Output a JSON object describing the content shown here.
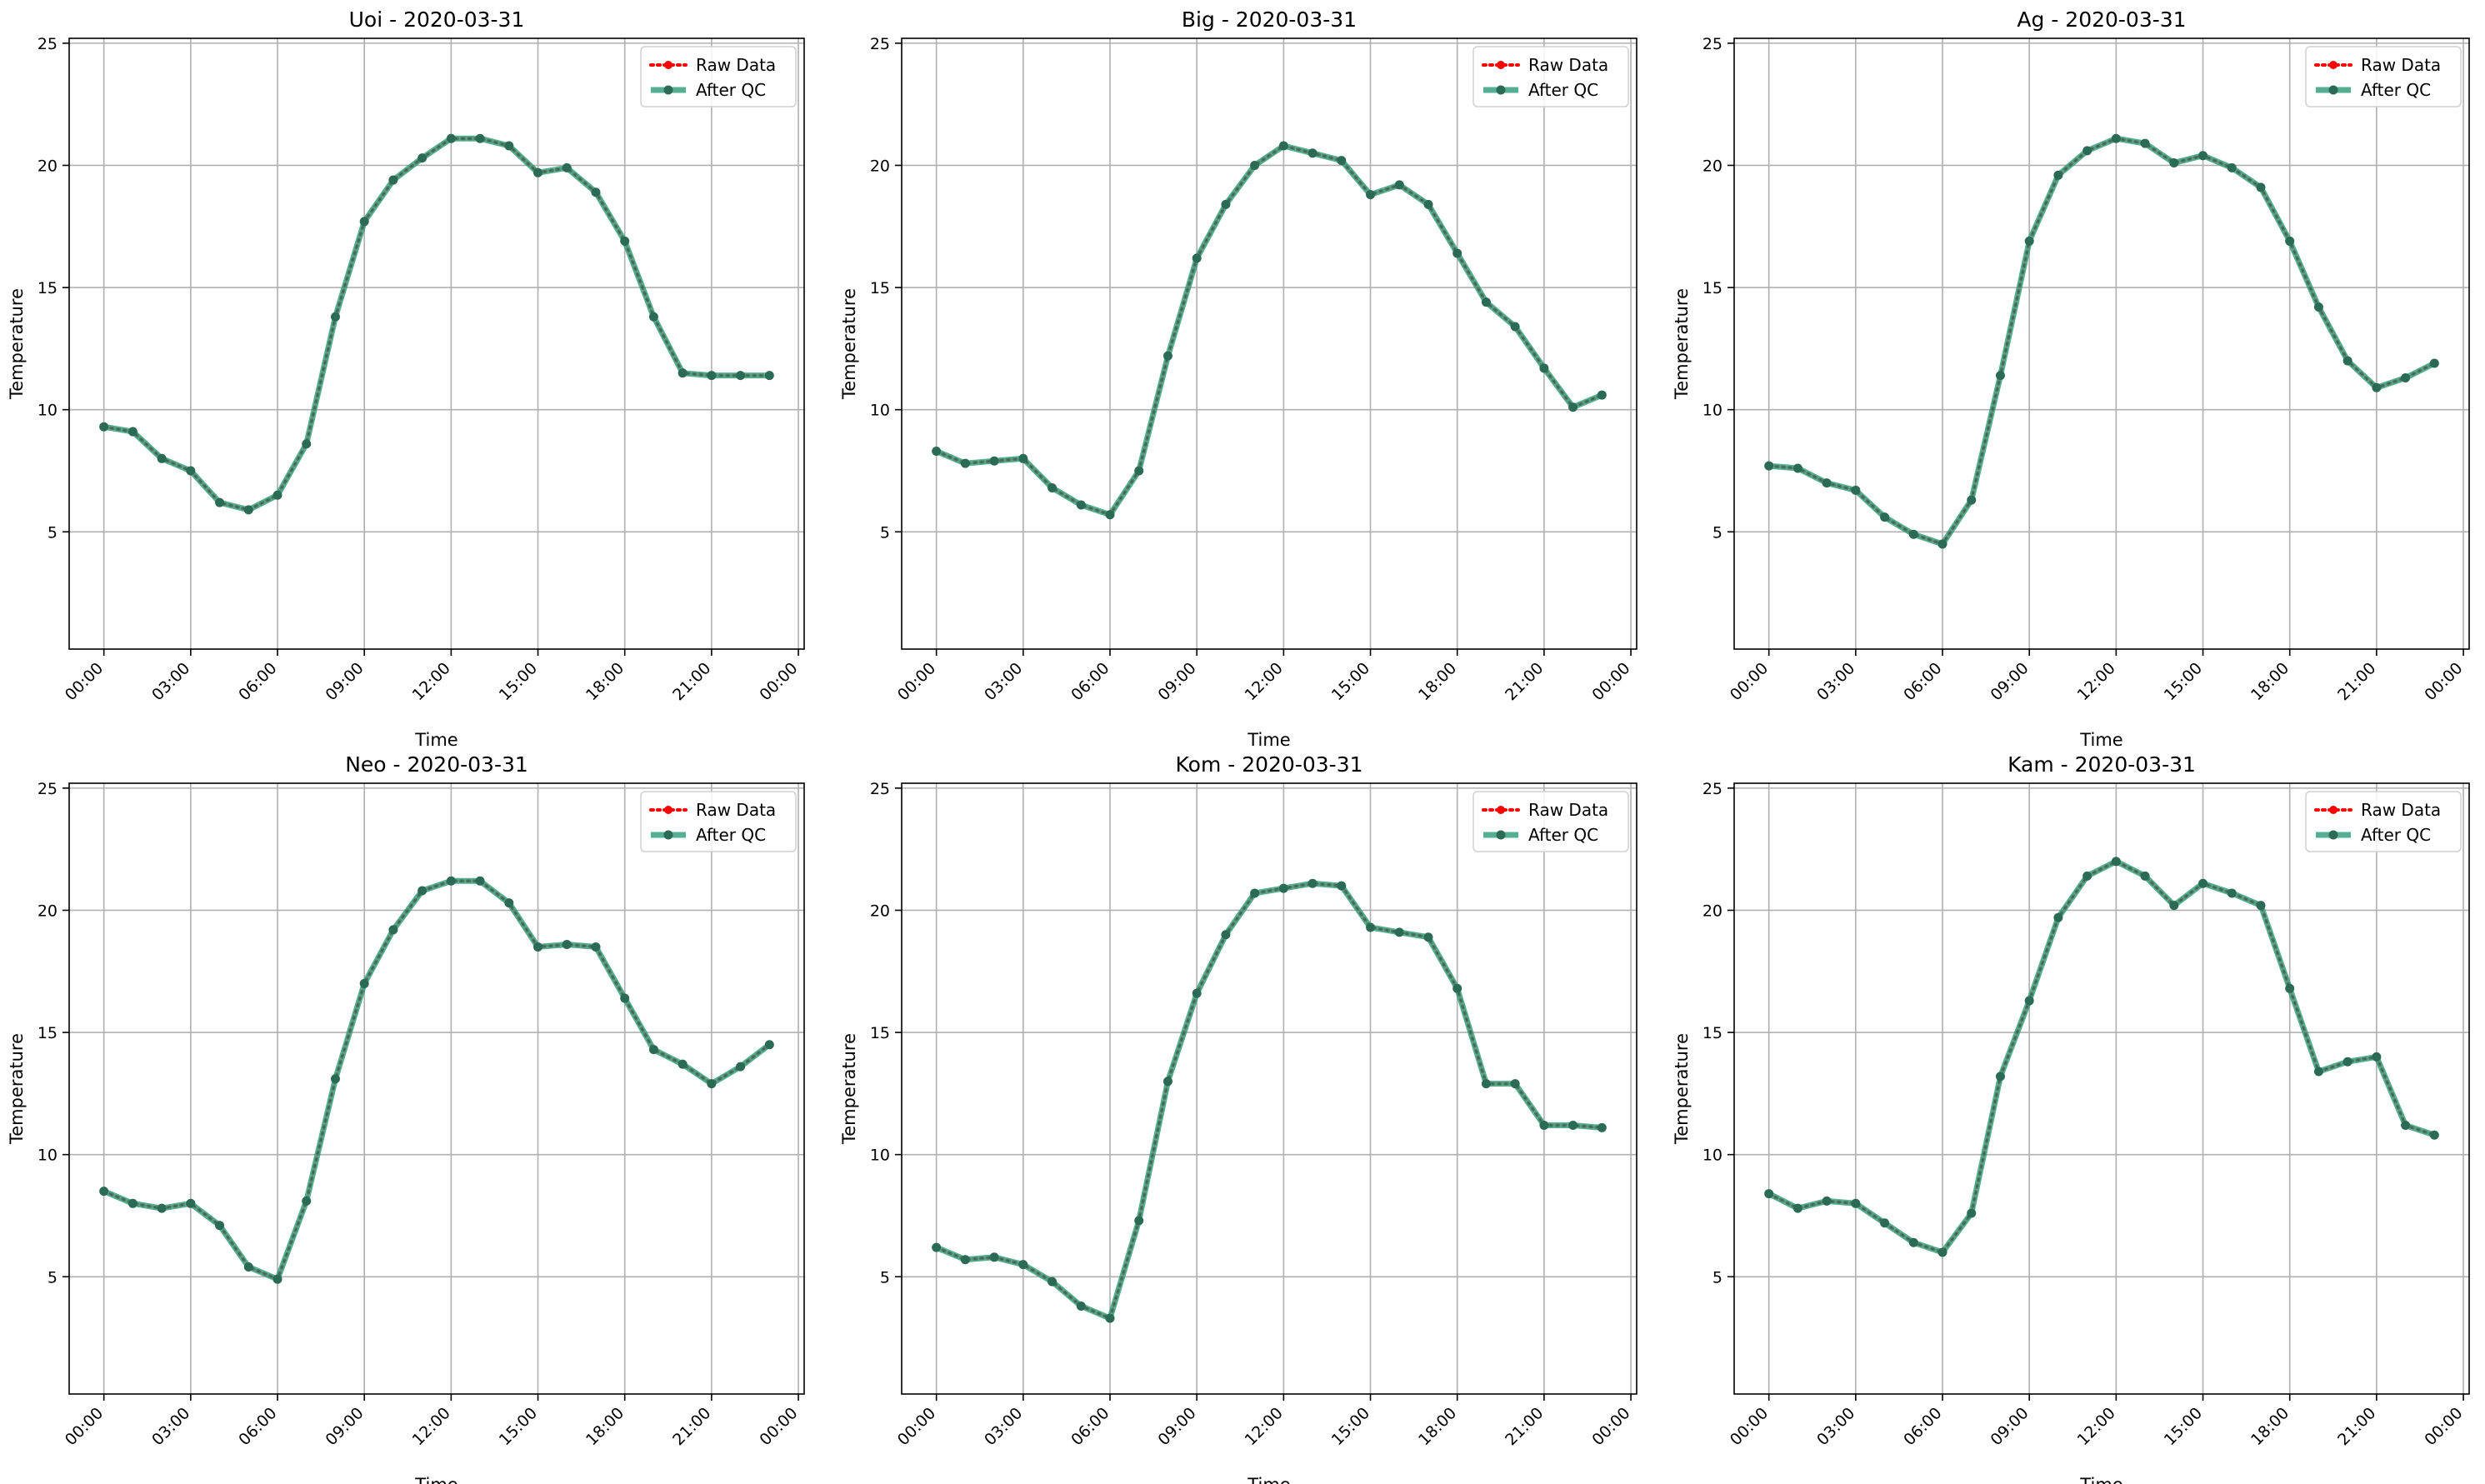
{
  "chart_data": [
    {
      "type": "line",
      "title": "Uoi - 2020-03-31",
      "xlabel": "Time",
      "ylabel": "Temperature",
      "ylim": [
        0.2,
        25.2
      ],
      "xlim": [
        "00:00",
        "24:00"
      ],
      "yticks": [
        5,
        10,
        15,
        20,
        25
      ],
      "xticks": [
        "00:00",
        "03:00",
        "06:00",
        "09:00",
        "12:00",
        "15:00",
        "18:00",
        "21:00",
        "00:00"
      ],
      "grid": true,
      "legend_position": "top-right",
      "x": [
        "00:00",
        "01:00",
        "02:00",
        "03:00",
        "04:00",
        "05:00",
        "06:00",
        "07:00",
        "08:00",
        "09:00",
        "10:00",
        "11:00",
        "12:00",
        "13:00",
        "14:00",
        "15:00",
        "16:00",
        "17:00",
        "18:00",
        "19:00",
        "20:00",
        "21:00",
        "22:00",
        "23:00"
      ],
      "series": [
        {
          "name": "Raw Data",
          "color": "#ff0000",
          "values": [
            9.3,
            9.1,
            8.0,
            7.5,
            6.2,
            5.9,
            6.5,
            8.6,
            13.8,
            17.7,
            19.4,
            20.3,
            21.1,
            21.1,
            20.8,
            19.7,
            19.9,
            18.9,
            16.9,
            13.8,
            11.5,
            11.4,
            11.4,
            11.4
          ]
        },
        {
          "name": "After QC",
          "color": "#2f9e7b",
          "values": [
            9.3,
            9.1,
            8.0,
            7.5,
            6.2,
            5.9,
            6.5,
            8.6,
            13.8,
            17.7,
            19.4,
            20.3,
            21.1,
            21.1,
            20.8,
            19.7,
            19.9,
            18.9,
            16.9,
            13.8,
            11.5,
            11.4,
            11.4,
            11.4
          ]
        }
      ]
    },
    {
      "type": "line",
      "title": "Big - 2020-03-31",
      "xlabel": "Time",
      "ylabel": "Temperature",
      "ylim": [
        0.2,
        25.2
      ],
      "xlim": [
        "00:00",
        "24:00"
      ],
      "yticks": [
        5,
        10,
        15,
        20,
        25
      ],
      "xticks": [
        "00:00",
        "03:00",
        "06:00",
        "09:00",
        "12:00",
        "15:00",
        "18:00",
        "21:00",
        "00:00"
      ],
      "grid": true,
      "legend_position": "top-right",
      "x": [
        "00:00",
        "01:00",
        "02:00",
        "03:00",
        "04:00",
        "05:00",
        "06:00",
        "07:00",
        "08:00",
        "09:00",
        "10:00",
        "11:00",
        "12:00",
        "13:00",
        "14:00",
        "15:00",
        "16:00",
        "17:00",
        "18:00",
        "19:00",
        "20:00",
        "21:00",
        "22:00",
        "23:00"
      ],
      "series": [
        {
          "name": "Raw Data",
          "color": "#ff0000",
          "values": [
            8.3,
            7.8,
            7.9,
            8.0,
            6.8,
            6.1,
            5.7,
            7.5,
            12.2,
            16.2,
            18.4,
            20.0,
            20.8,
            20.5,
            20.2,
            18.8,
            19.2,
            18.4,
            16.4,
            14.4,
            13.4,
            11.7,
            10.1,
            10.6
          ]
        },
        {
          "name": "After QC",
          "color": "#2f9e7b",
          "values": [
            8.3,
            7.8,
            7.9,
            8.0,
            6.8,
            6.1,
            5.7,
            7.5,
            12.2,
            16.2,
            18.4,
            20.0,
            20.8,
            20.5,
            20.2,
            18.8,
            19.2,
            18.4,
            16.4,
            14.4,
            13.4,
            11.7,
            10.1,
            10.6
          ]
        }
      ]
    },
    {
      "type": "line",
      "title": "Ag - 2020-03-31",
      "xlabel": "Time",
      "ylabel": "Temperature",
      "ylim": [
        0.2,
        25.2
      ],
      "xlim": [
        "00:00",
        "24:00"
      ],
      "yticks": [
        5,
        10,
        15,
        20,
        25
      ],
      "xticks": [
        "00:00",
        "03:00",
        "06:00",
        "09:00",
        "12:00",
        "15:00",
        "18:00",
        "21:00",
        "00:00"
      ],
      "grid": true,
      "legend_position": "top-right",
      "x": [
        "00:00",
        "01:00",
        "02:00",
        "03:00",
        "04:00",
        "05:00",
        "06:00",
        "07:00",
        "08:00",
        "09:00",
        "10:00",
        "11:00",
        "12:00",
        "13:00",
        "14:00",
        "15:00",
        "16:00",
        "17:00",
        "18:00",
        "19:00",
        "20:00",
        "21:00",
        "22:00",
        "23:00"
      ],
      "series": [
        {
          "name": "Raw Data",
          "color": "#ff0000",
          "values": [
            7.7,
            7.6,
            7.0,
            6.7,
            5.6,
            4.9,
            4.5,
            6.3,
            11.4,
            16.9,
            19.6,
            20.6,
            21.1,
            20.9,
            20.1,
            20.4,
            19.9,
            19.1,
            16.9,
            14.2,
            12.0,
            10.9,
            11.3,
            11.9
          ]
        },
        {
          "name": "After QC",
          "color": "#2f9e7b",
          "values": [
            7.7,
            7.6,
            7.0,
            6.7,
            5.6,
            4.9,
            4.5,
            6.3,
            11.4,
            16.9,
            19.6,
            20.6,
            21.1,
            20.9,
            20.1,
            20.4,
            19.9,
            19.1,
            16.9,
            14.2,
            12.0,
            10.9,
            11.3,
            11.9
          ]
        }
      ]
    },
    {
      "type": "line",
      "title": "Neo - 2020-03-31",
      "xlabel": "Time",
      "ylabel": "Temperature",
      "ylim": [
        0.2,
        25.2
      ],
      "xlim": [
        "00:00",
        "24:00"
      ],
      "yticks": [
        5,
        10,
        15,
        20,
        25
      ],
      "xticks": [
        "00:00",
        "03:00",
        "06:00",
        "09:00",
        "12:00",
        "15:00",
        "18:00",
        "21:00",
        "00:00"
      ],
      "grid": true,
      "legend_position": "top-right",
      "x": [
        "00:00",
        "01:00",
        "02:00",
        "03:00",
        "04:00",
        "05:00",
        "06:00",
        "07:00",
        "08:00",
        "09:00",
        "10:00",
        "11:00",
        "12:00",
        "13:00",
        "14:00",
        "15:00",
        "16:00",
        "17:00",
        "18:00",
        "19:00",
        "20:00",
        "21:00",
        "22:00",
        "23:00"
      ],
      "series": [
        {
          "name": "Raw Data",
          "color": "#ff0000",
          "values": [
            8.5,
            8.0,
            7.8,
            8.0,
            7.1,
            5.4,
            4.9,
            8.1,
            13.1,
            17.0,
            19.2,
            20.8,
            21.2,
            21.2,
            20.3,
            18.5,
            18.6,
            18.5,
            16.4,
            14.3,
            13.7,
            12.9,
            13.6,
            14.5
          ]
        },
        {
          "name": "After QC",
          "color": "#2f9e7b",
          "values": [
            8.5,
            8.0,
            7.8,
            8.0,
            7.1,
            5.4,
            4.9,
            8.1,
            13.1,
            17.0,
            19.2,
            20.8,
            21.2,
            21.2,
            20.3,
            18.5,
            18.6,
            18.5,
            16.4,
            14.3,
            13.7,
            12.9,
            13.6,
            14.5
          ]
        }
      ]
    },
    {
      "type": "line",
      "title": "Kom - 2020-03-31",
      "xlabel": "Time",
      "ylabel": "Temperature",
      "ylim": [
        0.2,
        25.2
      ],
      "xlim": [
        "00:00",
        "24:00"
      ],
      "yticks": [
        5,
        10,
        15,
        20,
        25
      ],
      "xticks": [
        "00:00",
        "03:00",
        "06:00",
        "09:00",
        "12:00",
        "15:00",
        "18:00",
        "21:00",
        "00:00"
      ],
      "grid": true,
      "legend_position": "top-right",
      "x": [
        "00:00",
        "01:00",
        "02:00",
        "03:00",
        "04:00",
        "05:00",
        "06:00",
        "07:00",
        "08:00",
        "09:00",
        "10:00",
        "11:00",
        "12:00",
        "13:00",
        "14:00",
        "15:00",
        "16:00",
        "17:00",
        "18:00",
        "19:00",
        "20:00",
        "21:00",
        "22:00",
        "23:00"
      ],
      "series": [
        {
          "name": "Raw Data",
          "color": "#ff0000",
          "values": [
            6.2,
            5.7,
            5.8,
            5.5,
            4.8,
            3.8,
            3.3,
            7.3,
            13.0,
            16.6,
            19.0,
            20.7,
            20.9,
            21.1,
            21.0,
            19.3,
            19.1,
            18.9,
            16.8,
            12.9,
            12.9,
            11.2,
            11.2,
            11.1
          ]
        },
        {
          "name": "After QC",
          "color": "#2f9e7b",
          "values": [
            6.2,
            5.7,
            5.8,
            5.5,
            4.8,
            3.8,
            3.3,
            7.3,
            13.0,
            16.6,
            19.0,
            20.7,
            20.9,
            21.1,
            21.0,
            19.3,
            19.1,
            18.9,
            16.8,
            12.9,
            12.9,
            11.2,
            11.2,
            11.1
          ]
        }
      ]
    },
    {
      "type": "line",
      "title": "Kam - 2020-03-31",
      "xlabel": "Time",
      "ylabel": "Temperature",
      "ylim": [
        0.2,
        25.2
      ],
      "xlim": [
        "00:00",
        "24:00"
      ],
      "yticks": [
        5,
        10,
        15,
        20,
        25
      ],
      "xticks": [
        "00:00",
        "03:00",
        "06:00",
        "09:00",
        "12:00",
        "15:00",
        "18:00",
        "21:00",
        "00:00"
      ],
      "grid": true,
      "legend_position": "top-right",
      "x": [
        "00:00",
        "01:00",
        "02:00",
        "03:00",
        "04:00",
        "05:00",
        "06:00",
        "07:00",
        "08:00",
        "09:00",
        "10:00",
        "11:00",
        "12:00",
        "13:00",
        "14:00",
        "15:00",
        "16:00",
        "17:00",
        "18:00",
        "19:00",
        "20:00",
        "21:00",
        "22:00",
        "23:00"
      ],
      "series": [
        {
          "name": "Raw Data",
          "color": "#ff0000",
          "values": [
            8.4,
            7.8,
            8.1,
            8.0,
            7.2,
            6.4,
            6.0,
            7.6,
            13.2,
            16.3,
            19.7,
            21.4,
            22.0,
            21.4,
            20.2,
            21.1,
            20.7,
            20.2,
            16.8,
            13.4,
            13.8,
            14.0,
            11.2,
            10.8
          ]
        },
        {
          "name": "After QC",
          "color": "#2f9e7b",
          "values": [
            8.4,
            7.8,
            8.1,
            8.0,
            7.2,
            6.4,
            6.0,
            7.6,
            13.2,
            16.3,
            19.7,
            21.4,
            22.0,
            21.4,
            20.2,
            21.1,
            20.7,
            20.2,
            16.8,
            13.4,
            13.8,
            14.0,
            11.2,
            10.8
          ]
        }
      ]
    }
  ]
}
